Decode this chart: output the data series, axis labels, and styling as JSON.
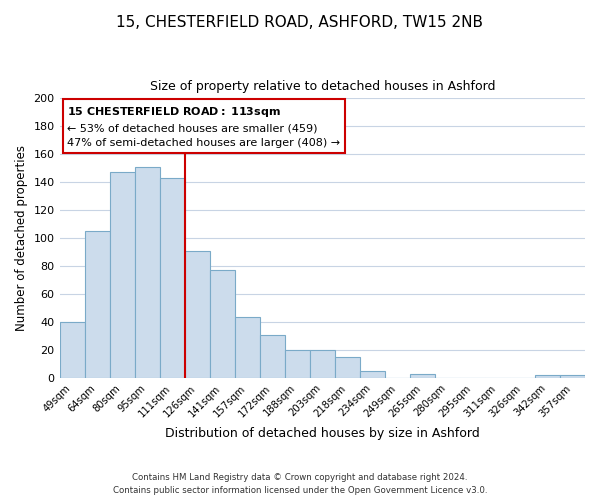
{
  "title": "15, CHESTERFIELD ROAD, ASHFORD, TW15 2NB",
  "subtitle": "Size of property relative to detached houses in Ashford",
  "xlabel": "Distribution of detached houses by size in Ashford",
  "ylabel": "Number of detached properties",
  "categories": [
    "49sqm",
    "64sqm",
    "80sqm",
    "95sqm",
    "111sqm",
    "126sqm",
    "141sqm",
    "157sqm",
    "172sqm",
    "188sqm",
    "203sqm",
    "218sqm",
    "234sqm",
    "249sqm",
    "265sqm",
    "280sqm",
    "295sqm",
    "311sqm",
    "326sqm",
    "342sqm",
    "357sqm"
  ],
  "values": [
    40,
    105,
    147,
    151,
    143,
    91,
    77,
    44,
    31,
    20,
    20,
    15,
    5,
    0,
    3,
    0,
    0,
    0,
    0,
    2,
    2
  ],
  "bar_fill_color": "#ccdcec",
  "bar_edge_color": "#7aaac8",
  "vline_color": "#cc0000",
  "vline_x": 4.5,
  "ylim": [
    0,
    200
  ],
  "yticks": [
    0,
    20,
    40,
    60,
    80,
    100,
    120,
    140,
    160,
    180,
    200
  ],
  "annotation_title": "15 CHESTERFIELD ROAD: 113sqm",
  "annotation_line1": "← 53% of detached houses are smaller (459)",
  "annotation_line2": "47% of semi-detached houses are larger (408) →",
  "annotation_box_facecolor": "#ffffff",
  "annotation_box_edgecolor": "#cc0000",
  "footer_line1": "Contains HM Land Registry data © Crown copyright and database right 2024.",
  "footer_line2": "Contains public sector information licensed under the Open Government Licence v3.0.",
  "background_color": "#ffffff",
  "grid_color": "#c8d4e4"
}
